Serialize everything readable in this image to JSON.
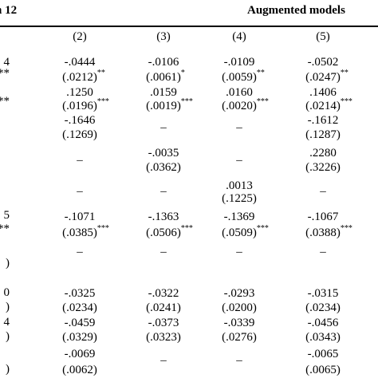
{
  "header": {
    "left_title": "n 12",
    "right_title": "Augmented models"
  },
  "column_labels": [
    "(2)",
    "(3)",
    "(4)",
    "(5)"
  ],
  "left_fragments": [
    "4",
    "***",
    "***",
    "5",
    "***",
    ")",
    "0",
    ")",
    "4",
    ")",
    ")"
  ],
  "lines": [
    [
      {
        "text": "-.0444"
      },
      {
        "text": "-.0106"
      },
      {
        "text": "-.0109"
      },
      {
        "text": "-.0502"
      }
    ],
    [
      {
        "text": "(.0212)",
        "stars": "**"
      },
      {
        "text": "(.0061)",
        "stars": "*"
      },
      {
        "text": "(.0059)",
        "stars": "**"
      },
      {
        "text": "(.0247)",
        "stars": "**"
      }
    ],
    [
      {
        "text": ".1250"
      },
      {
        "text": ".0159"
      },
      {
        "text": ".0160"
      },
      {
        "text": ".1406"
      }
    ],
    [
      {
        "text": "(.0196)",
        "stars": "***"
      },
      {
        "text": "(.0019)",
        "stars": "***"
      },
      {
        "text": "(.0020)",
        "stars": "***"
      },
      {
        "text": "(.0214)",
        "stars": "***"
      }
    ],
    [
      {
        "text": "-.1646"
      },
      null,
      null,
      {
        "text": "-.1612"
      }
    ],
    [
      null,
      {
        "text": "–"
      },
      {
        "text": "–"
      },
      null
    ],
    [
      {
        "text": "(.1269)"
      },
      null,
      null,
      {
        "text": "(.1287)"
      }
    ],
    [
      null,
      {
        "text": "-.0035"
      },
      null,
      {
        "text": ".2280"
      }
    ],
    [
      {
        "text": "–"
      },
      null,
      {
        "text": "–"
      },
      null
    ],
    [
      null,
      {
        "text": "(.0362)"
      },
      null,
      {
        "text": "(.3226)"
      }
    ],
    [
      null,
      null,
      {
        "text": ".0013"
      },
      null
    ],
    [
      {
        "text": "–"
      },
      {
        "text": "–"
      },
      null,
      {
        "text": "–"
      }
    ],
    [
      null,
      null,
      {
        "text": "(.1225)"
      },
      null
    ],
    [
      {
        "text": "-.1071"
      },
      {
        "text": "-.1363"
      },
      {
        "text": "-.1369"
      },
      {
        "text": "-.1067"
      }
    ],
    [
      {
        "text": "(.0385)",
        "stars": "***"
      },
      {
        "text": "(.0506)",
        "stars": "***"
      },
      {
        "text": "(.0509)",
        "stars": "***"
      },
      {
        "text": "(.0388)",
        "stars": "***"
      }
    ],
    [
      {
        "text": "–"
      },
      {
        "text": "–"
      },
      {
        "text": "–"
      },
      {
        "text": "–"
      }
    ],
    [
      {
        "text": "-.0325"
      },
      {
        "text": "-.0322"
      },
      {
        "text": "-.0293"
      },
      {
        "text": "-.0315"
      }
    ],
    [
      {
        "text": "(.0234)"
      },
      {
        "text": "(.0241)"
      },
      {
        "text": "(.0200)"
      },
      {
        "text": "(.0234)"
      }
    ],
    [
      {
        "text": "-.0459"
      },
      {
        "text": "-.0373"
      },
      {
        "text": "-.0339"
      },
      {
        "text": "-.0456"
      }
    ],
    [
      {
        "text": "(.0329)"
      },
      {
        "text": "(.0323)"
      },
      {
        "text": "(.0276)"
      },
      {
        "text": "(.0343)"
      }
    ],
    [
      {
        "text": "-.0069"
      },
      null,
      null,
      {
        "text": "-.0065"
      }
    ],
    [
      null,
      {
        "text": "–"
      },
      {
        "text": "–"
      },
      null
    ],
    [
      {
        "text": "(.0062)"
      },
      null,
      null,
      {
        "text": "(.0065)"
      }
    ]
  ]
}
